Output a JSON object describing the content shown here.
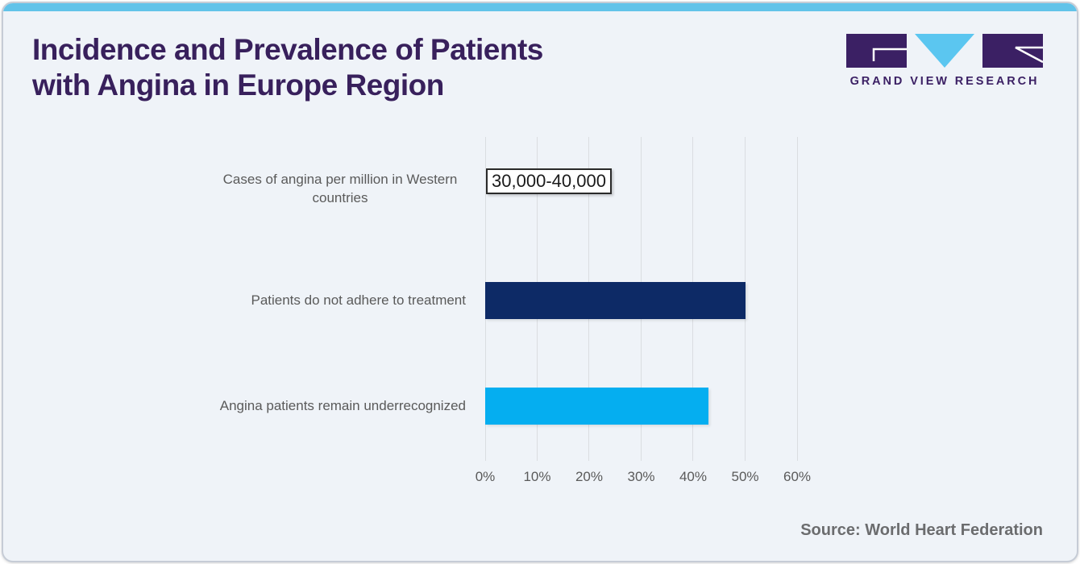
{
  "header": {
    "title_line1": "Incidence and Prevalence of Patients",
    "title_line2": "with Angina in Europe Region"
  },
  "logo": {
    "wordmark": "GRAND VIEW RESEARCH",
    "purple": "#3B2064",
    "blue": "#5BC6F0"
  },
  "chart_data": {
    "type": "bar",
    "orientation": "horizontal",
    "title": "Incidence and Prevalence of Patients with Angina in Europe Region",
    "xlabel": "",
    "ylabel": "",
    "xlim": [
      0,
      60
    ],
    "grid": "vertical",
    "x_ticks": [
      "0%",
      "10%",
      "20%",
      "30%",
      "40%",
      "50%",
      "60%"
    ],
    "x_tick_values": [
      0,
      10,
      20,
      30,
      40,
      50,
      60
    ],
    "categories": [
      "Cases of angina per million in Western countries",
      "Patients do not adhere to treatment",
      "Angina patients remain underrecognized"
    ],
    "rows": [
      {
        "category": "Cases of angina per million in Western countries",
        "value": null,
        "annotation": "30,000-40,000",
        "style": "boxed-text-label"
      },
      {
        "category": "Patients do not adhere to treatment",
        "value": 50,
        "unit": "%",
        "color": "#0D2A66"
      },
      {
        "category": "Angina patients remain underrecognized",
        "value": 43,
        "unit": "%",
        "color": "#05AEF0"
      }
    ]
  },
  "source": {
    "label": "Source: World Heart Federation"
  },
  "theme": {
    "background": "#EFF3F8",
    "top_strip": "#62C3E9",
    "title_color": "#38205C",
    "gridline_color": "#DADDE1",
    "label_color": "#5A5A5A"
  }
}
